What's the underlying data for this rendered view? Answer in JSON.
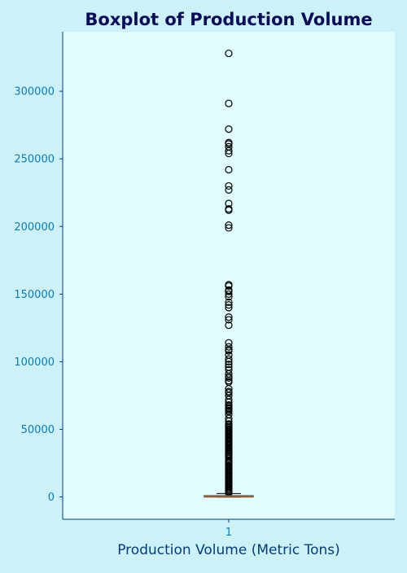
{
  "chart_data": {
    "type": "box",
    "title": "Boxplot of Production Volume",
    "xlabel": "Production Volume (Metric Tons)",
    "ylabel": "",
    "categories": [
      "1"
    ],
    "ylim": [
      -16500,
      344000
    ],
    "yticks": [
      0,
      50000,
      100000,
      150000,
      200000,
      250000,
      300000
    ],
    "ytick_labels": [
      "0",
      "50000",
      "100000",
      "150000",
      "200000",
      "250000",
      "300000"
    ],
    "box": {
      "min": 0,
      "q1": 0,
      "median": 600,
      "q3": 1000,
      "whisker_high": 2500
    },
    "outliers": [
      328000,
      291000,
      272000,
      262000,
      261000,
      259000,
      256000,
      254000,
      242000,
      230000,
      227000,
      217000,
      213000,
      212000,
      201000,
      199000,
      157000,
      156000,
      153000,
      152000,
      150000,
      148000,
      144000,
      142000,
      140000,
      133000,
      131000,
      127000,
      114000,
      111000,
      109000,
      108000,
      105000,
      102000,
      100000,
      98000,
      96000,
      94000,
      91000,
      89000,
      88000,
      86000,
      85000,
      80000,
      78000,
      77000,
      75000,
      72000,
      70000,
      68000,
      67000,
      66000,
      65000,
      64000,
      63000,
      61000,
      58000,
      56000,
      54000,
      53000,
      52000,
      51000,
      50000,
      49000,
      48000,
      47000,
      46000,
      45000,
      44000,
      43000,
      42000,
      41000,
      40000,
      39000,
      38000,
      37000,
      36000,
      35000,
      34000,
      33000,
      32000,
      31000,
      30000,
      28500,
      27000,
      26000,
      25000,
      24000,
      23000,
      22000,
      21000,
      20000,
      19000,
      18000,
      17000,
      16000,
      15000,
      14000,
      13000,
      12000,
      11000,
      10000,
      9000,
      8000,
      7000,
      6000,
      5000,
      4000,
      3000
    ],
    "grid": false,
    "colors": {
      "page_bg": "#ccf2f8",
      "plot_bg": "#e0fcfc",
      "axis": "#003d80",
      "tick_label": "#0a7aba",
      "title": "#0a0a5a",
      "xlabel": "#003d80",
      "median": "#e8802a",
      "outlier": "#000000"
    }
  }
}
